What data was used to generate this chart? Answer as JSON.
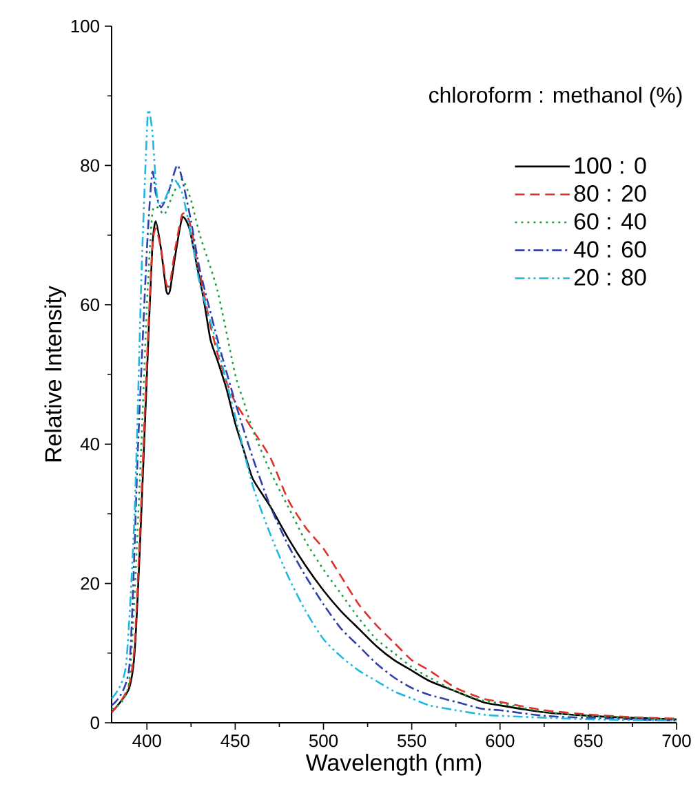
{
  "chart_data": {
    "type": "line",
    "xlabel": "Wavelength (nm)",
    "ylabel": "Relative Intensity",
    "legend_title": "chloroform : methanol (%)",
    "xlim": [
      380,
      700
    ],
    "ylim": [
      0,
      100
    ],
    "xticks": [
      400,
      450,
      500,
      550,
      600,
      650,
      700
    ],
    "yticks": [
      0,
      20,
      40,
      60,
      80,
      100
    ],
    "grid": false,
    "legend": "top right",
    "marker": "none",
    "series": [
      {
        "name": "100 : 0",
        "color": "#000000",
        "line_style": "solid",
        "x": [
          380,
          385,
          390,
          393,
          396,
          400,
          403,
          405,
          408,
          411,
          413,
          416,
          420,
          424,
          428,
          432,
          436,
          440,
          445,
          450,
          455,
          460,
          470,
          480,
          490,
          500,
          510,
          520,
          530,
          540,
          550,
          560,
          575,
          590,
          600,
          625,
          650,
          675,
          700
        ],
        "values": [
          1.5,
          3,
          5,
          10,
          25,
          50,
          68,
          72,
          68,
          62,
          62,
          67,
          72.5,
          71,
          66,
          61,
          55,
          52,
          48,
          43,
          39,
          35,
          31,
          26.5,
          22.5,
          19,
          16,
          13.5,
          11,
          9,
          7.5,
          6,
          4.5,
          3,
          2.5,
          1.5,
          1,
          0.7,
          0.5
        ]
      },
      {
        "name": "80 : 20",
        "color": "#e0302a",
        "line_style": "dashed",
        "x": [
          380,
          385,
          390,
          393,
          396,
          400,
          403,
          405,
          408,
          411,
          413,
          416,
          420,
          424,
          428,
          432,
          436,
          440,
          445,
          450,
          455,
          460,
          470,
          480,
          490,
          500,
          510,
          520,
          530,
          540,
          550,
          560,
          575,
          590,
          600,
          625,
          650,
          675,
          700
        ],
        "values": [
          1.5,
          3,
          5.5,
          11,
          27,
          52,
          68,
          71,
          68,
          63,
          63,
          68,
          73,
          72,
          67,
          62,
          57,
          53,
          49,
          46,
          44,
          42,
          38,
          32,
          28,
          25,
          21,
          17,
          14,
          11.5,
          9,
          7.5,
          5,
          3.5,
          3,
          1.8,
          1.2,
          0.8,
          0.6
        ]
      },
      {
        "name": "60 : 40",
        "color": "#1fa040",
        "line_style": "dotted",
        "x": [
          380,
          390,
          396,
          400,
          403,
          406,
          410,
          415,
          420,
          425,
          430,
          440,
          450,
          455,
          460,
          470,
          480,
          490,
          500,
          510,
          520,
          530,
          540,
          550,
          560,
          575,
          590,
          600,
          625,
          650,
          700
        ],
        "values": [
          2,
          6,
          35,
          60,
          73,
          74,
          73,
          76,
          78,
          75,
          70,
          62,
          50,
          46,
          42,
          36,
          31,
          26,
          22,
          18.5,
          15,
          12,
          10,
          8,
          6.5,
          4.5,
          3.2,
          2.8,
          1.6,
          1,
          0.5
        ]
      },
      {
        "name": "40 : 60",
        "color": "#3040a8",
        "line_style": "dashdot",
        "x": [
          380,
          390,
          395,
          400,
          403,
          405,
          408,
          412,
          417,
          420,
          425,
          430,
          440,
          450,
          460,
          470,
          480,
          490,
          500,
          510,
          520,
          530,
          540,
          550,
          560,
          575,
          590,
          600,
          625,
          650,
          700
        ],
        "values": [
          2.5,
          8,
          40,
          68,
          79,
          76,
          74,
          76,
          80,
          78,
          72,
          65,
          55,
          46,
          38,
          31,
          25.5,
          21,
          17,
          13.5,
          11,
          8.5,
          6.5,
          5,
          4,
          3,
          2,
          1.8,
          1,
          0.7,
          0.3
        ]
      },
      {
        "name": "20 : 80",
        "color": "#20b8e0",
        "line_style": "dashdotdot",
        "x": [
          380,
          388,
          393,
          397,
          400,
          401,
          403,
          406,
          410,
          415,
          420,
          425,
          430,
          440,
          450,
          460,
          470,
          480,
          490,
          500,
          510,
          520,
          530,
          540,
          550,
          560,
          575,
          590,
          600,
          650,
          700
        ],
        "values": [
          3.5,
          8,
          30,
          65,
          85,
          88,
          85,
          75,
          75,
          78,
          76,
          70,
          63,
          54,
          44,
          34,
          27,
          21,
          16,
          12,
          9.5,
          7.5,
          6,
          4.5,
          3.5,
          2.5,
          1.8,
          1.2,
          1,
          0.5,
          0.3
        ]
      }
    ]
  }
}
